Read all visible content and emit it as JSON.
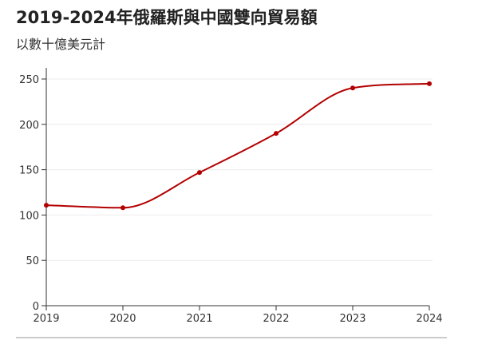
{
  "chart_data": {
    "type": "line",
    "title": "2019-2024年俄羅斯與中國雙向貿易額",
    "subtitle": "以數十億美元計",
    "xlabel": "",
    "ylabel": "",
    "x": [
      "2019",
      "2020",
      "2021",
      "2022",
      "2023",
      "2024"
    ],
    "series": [
      {
        "values": [
          110.8,
          108,
          146.9,
          190,
          240.1,
          244.8
        ],
        "color": "#b30000"
      }
    ],
    "ylim": [
      0,
      250
    ],
    "yticks": [
      "0",
      "50",
      "100",
      "150",
      "200",
      "250"
    ],
    "grid": true,
    "legend": "none"
  }
}
